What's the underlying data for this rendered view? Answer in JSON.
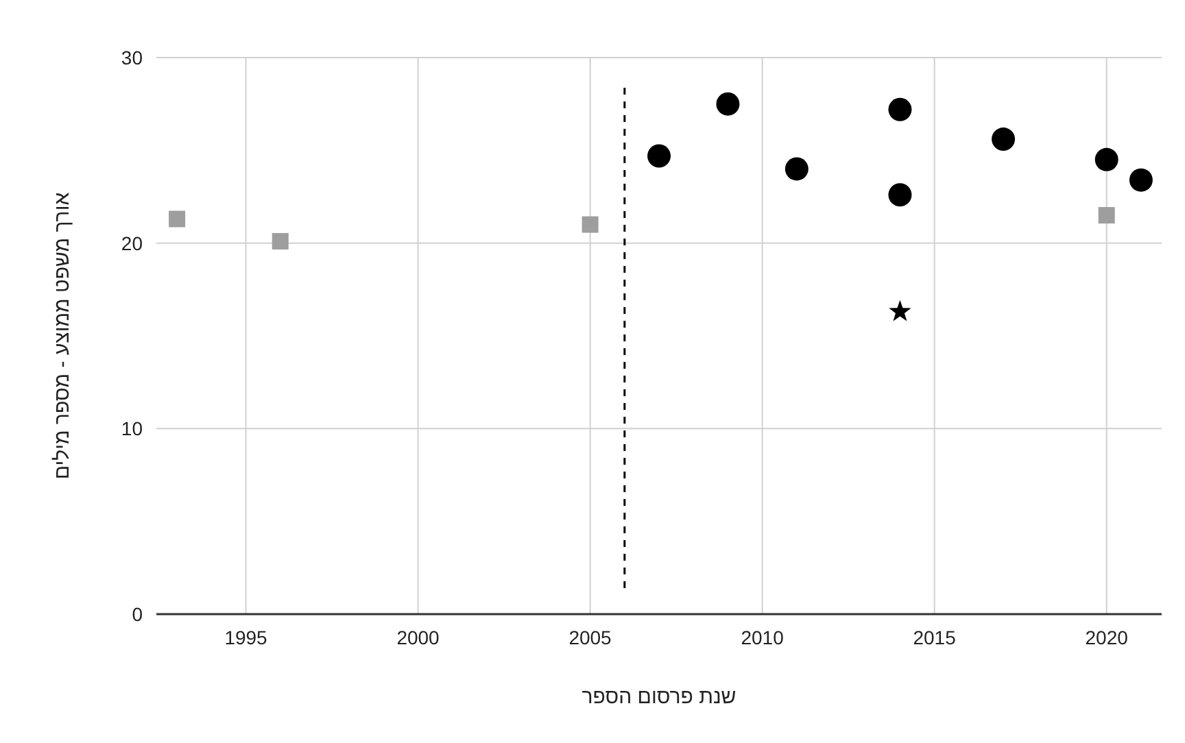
{
  "chart_data": {
    "type": "scatter",
    "xlabel": "שנת פרסום הספר",
    "ylabel": "אורך משפט ממוצע - מספר מילים",
    "xlim": [
      1992.4,
      2021.6
    ],
    "xticks": [
      1995,
      2000,
      2005,
      2010,
      2015,
      2020
    ],
    "ylim": [
      0,
      30
    ],
    "yticks": [
      0,
      10,
      20,
      30
    ],
    "grid": true,
    "series": [
      {
        "color": "#9e9e9e",
        "marker": "square",
        "x": [
          1993,
          1996,
          2005,
          2020
        ],
        "values": [
          21.3,
          20.1,
          21.0,
          21.5
        ]
      },
      {
        "color": "#000000",
        "marker": "circle",
        "x": [
          2007,
          2009,
          2011,
          2014,
          2014,
          2017,
          2020,
          2021
        ],
        "values": [
          24.7,
          27.5,
          24.0,
          27.2,
          22.6,
          25.6,
          24.5,
          23.4
        ]
      },
      {
        "color": "#000000",
        "marker": "star",
        "x": [
          2014
        ],
        "values": [
          16.3
        ]
      }
    ],
    "ref_lines": [
      {
        "axis": "x",
        "value": 2006,
        "color": "#000000",
        "line_style": "dashed"
      }
    ]
  }
}
